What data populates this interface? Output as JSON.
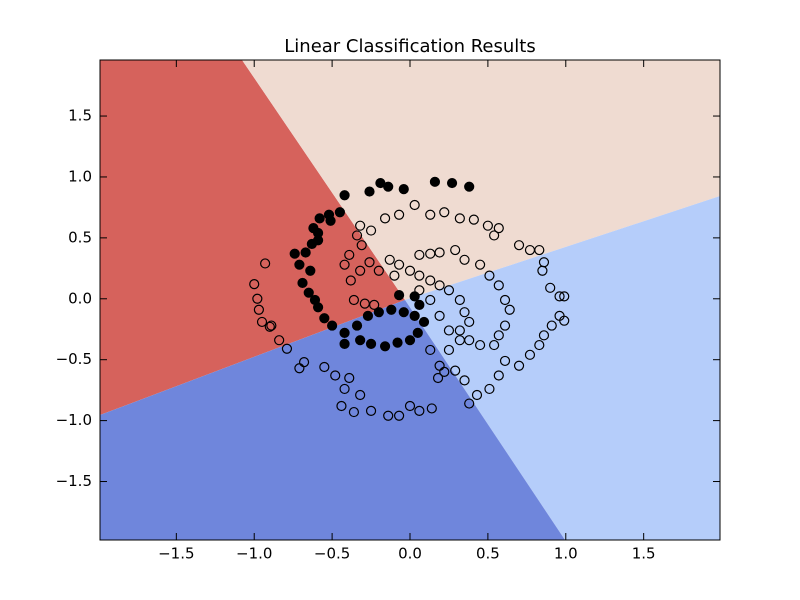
{
  "chart_data": {
    "type": "scatter",
    "title": "Linear Classification Results",
    "xlim": [
      -1.99,
      1.99
    ],
    "ylim": [
      -1.98,
      1.96
    ],
    "xticks": [
      {
        "value": -1.5,
        "label": "−1.5"
      },
      {
        "value": -1,
        "label": "−1.0"
      },
      {
        "value": -0.5,
        "label": "−0.5"
      },
      {
        "value": 0,
        "label": "0.0"
      },
      0.5,
      {
        "value": 1,
        "label": "1.0"
      },
      1.5
    ],
    "yticks": [
      {
        "value": -1.5,
        "label": "−1.5"
      },
      {
        "value": -1,
        "label": "−1.0"
      },
      {
        "value": -0.5,
        "label": "−0.5"
      },
      {
        "value": 0,
        "label": "0.0"
      },
      0.5,
      {
        "value": 1,
        "label": "1.0"
      },
      1.5
    ],
    "series": [
      {
        "color": "#000000",
        "filled": true,
        "x": [
          -0.42,
          -0.26,
          -0.19,
          -0.14,
          -0.04,
          0.16,
          0.27,
          0.38,
          -0.45,
          -0.52,
          -0.58,
          -0.62,
          -0.59,
          -0.63,
          -0.67,
          -0.74,
          -0.71,
          -0.69,
          -0.65,
          -0.61,
          -0.59,
          -0.55,
          -0.5,
          -0.42,
          -0.42,
          -0.32,
          -0.25,
          -0.16,
          -0.08,
          0.0,
          0.05,
          0.09,
          0.03,
          -0.04,
          -0.12,
          -0.2,
          -0.27,
          -0.34,
          -0.64,
          -0.59,
          -0.51,
          -0.07,
          0.03,
          0.06
        ],
        "y": [
          0.85,
          0.88,
          0.95,
          0.92,
          0.9,
          0.96,
          0.95,
          0.92,
          0.71,
          0.69,
          0.66,
          0.58,
          0.48,
          0.45,
          0.38,
          0.37,
          0.28,
          0.13,
          0.05,
          -0.01,
          -0.07,
          -0.16,
          -0.22,
          -0.28,
          -0.37,
          -0.34,
          -0.37,
          -0.39,
          -0.36,
          -0.34,
          -0.28,
          -0.19,
          -0.14,
          -0.11,
          -0.09,
          -0.11,
          -0.14,
          -0.22,
          0.23,
          0.54,
          0.64,
          0.03,
          0.02,
          -0.05
        ]
      },
      {
        "color": "#000000",
        "filled": false,
        "x": [
          -0.34,
          -0.32,
          -0.25,
          -0.16,
          -0.07,
          0.03,
          0.13,
          0.22,
          0.32,
          0.41,
          0.5,
          0.54,
          0.57,
          0.7,
          0.77,
          0.83,
          0.86,
          0.85,
          0.9,
          0.96,
          0.99,
          0.91,
          0.96,
          0.99,
          0.86,
          0.83,
          0.77,
          0.7,
          0.61,
          0.57,
          0.51,
          0.43,
          0.38,
          0.35,
          0.29,
          0.22,
          0.18,
          0.14,
          0.06,
          0.0,
          -0.07,
          -0.14,
          -0.25,
          -0.32,
          -0.42,
          -0.48,
          -0.39,
          -0.36,
          -0.44,
          -0.55,
          -0.68,
          -0.71,
          -0.79,
          -0.84,
          -0.9,
          -0.95,
          -0.97,
          -0.98,
          -1.0,
          -0.93,
          -0.89,
          0.06,
          0.13,
          0.19,
          0.29,
          0.35,
          0.45,
          0.51,
          0.57,
          0.61,
          0.64,
          0.61,
          0.57,
          0.54,
          0.45,
          0.38,
          0.32,
          0.25,
          0.19,
          0.13,
          -0.13,
          -0.07,
          0.0,
          0.06,
          0.13,
          0.19,
          0.25,
          0.32,
          0.35,
          0.38,
          0.32,
          0.25,
          0.19,
          0.13,
          0.06,
          -0.1,
          -0.2,
          -0.26,
          -0.32,
          -0.38,
          -0.36,
          -0.29,
          -0.23,
          -0.42,
          -0.39,
          -0.31
        ],
        "y": [
          0.52,
          0.6,
          0.56,
          0.66,
          0.69,
          0.77,
          0.69,
          0.71,
          0.66,
          0.65,
          0.6,
          0.52,
          0.58,
          0.44,
          0.4,
          0.4,
          0.3,
          0.23,
          0.09,
          0.02,
          0.02,
          -0.22,
          -0.14,
          -0.18,
          -0.3,
          -0.38,
          -0.46,
          -0.55,
          -0.51,
          -0.63,
          -0.74,
          -0.79,
          -0.86,
          -0.67,
          -0.59,
          -0.6,
          -0.65,
          -0.9,
          -0.92,
          -0.88,
          -0.96,
          -0.96,
          -0.92,
          -0.79,
          -0.74,
          -0.63,
          -0.65,
          -0.93,
          -0.88,
          -0.56,
          -0.52,
          -0.57,
          -0.41,
          -0.34,
          -0.23,
          -0.19,
          -0.09,
          0.0,
          0.12,
          0.29,
          -0.22,
          0.36,
          0.37,
          0.38,
          0.4,
          0.32,
          0.28,
          0.19,
          0.11,
          -0.01,
          -0.09,
          -0.22,
          -0.3,
          -0.38,
          -0.38,
          -0.34,
          -0.34,
          -0.42,
          -0.55,
          -0.42,
          0.32,
          0.28,
          0.23,
          0.19,
          0.15,
          0.11,
          0.07,
          -0.01,
          -0.11,
          -0.19,
          -0.26,
          -0.26,
          -0.14,
          -0.01,
          0.07,
          0.19,
          0.23,
          0.3,
          0.23,
          0.15,
          -0.01,
          -0.04,
          -0.05,
          0.28,
          0.36,
          0.44
        ]
      }
    ]
  }
}
